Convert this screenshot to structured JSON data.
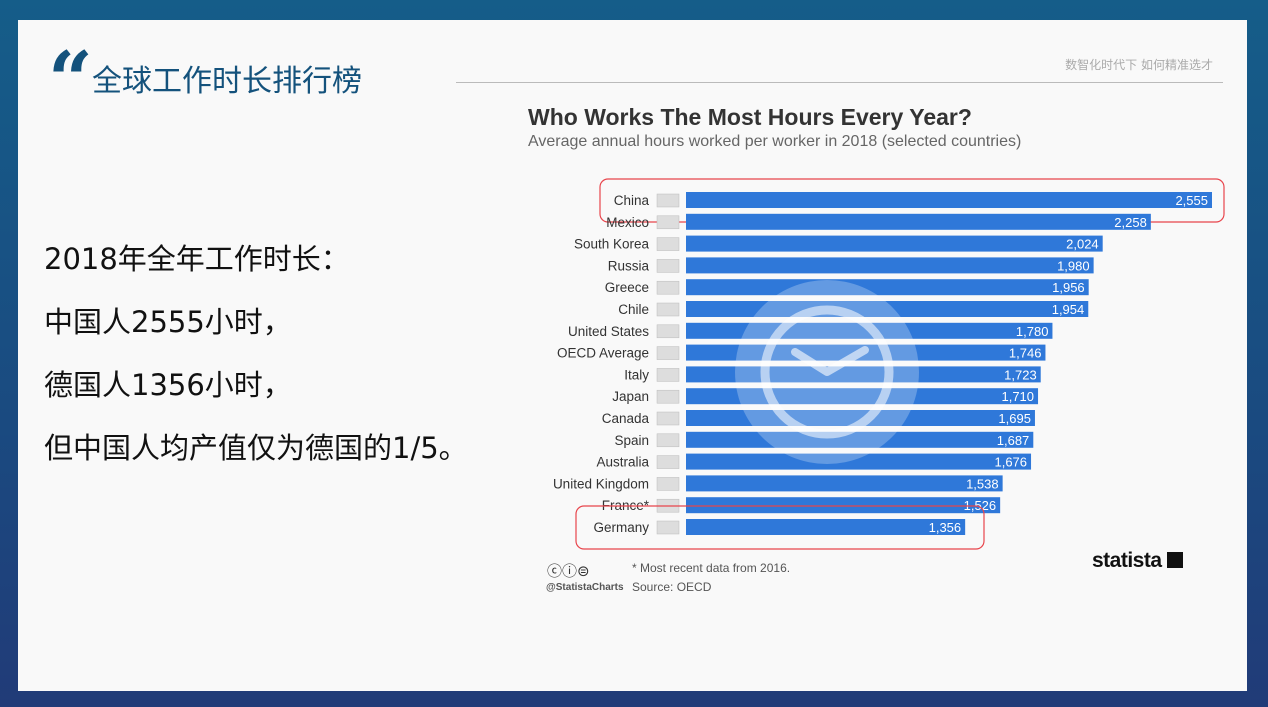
{
  "slide": {
    "title": "全球工作时长排行榜",
    "tagline": "数智化时代下 如何精准选才",
    "lines": [
      "2018年全年工作时长：",
      "中国人2555小时，",
      "德国人1356小时，",
      "但中国人均产值仅为德国的1/5。"
    ]
  },
  "chart_data": {
    "type": "bar",
    "orientation": "horizontal",
    "title": "Who Works The Most Hours Every Year?",
    "subtitle": "Average annual hours worked per worker in 2018 (selected countries)",
    "categories": [
      "China",
      "Mexico",
      "South Korea",
      "Russia",
      "Greece",
      "Chile",
      "United States",
      "OECD Average",
      "Italy",
      "Japan",
      "Canada",
      "Spain",
      "Australia",
      "United Kingdom",
      "France*",
      "Germany"
    ],
    "values": [
      2555,
      2258,
      2024,
      1980,
      1956,
      1954,
      1780,
      1746,
      1723,
      1710,
      1695,
      1687,
      1676,
      1538,
      1526,
      1356
    ],
    "value_labels": [
      "2,555",
      "2,258",
      "2,024",
      "1,980",
      "1,956",
      "1,954",
      "1,780",
      "1,746",
      "1,723",
      "1,710",
      "1,695",
      "1,687",
      "1,676",
      "1,538",
      "1,526",
      "1,356"
    ],
    "highlighted": [
      "China",
      "Germany"
    ],
    "bar_color": "#2f78d9",
    "highlight_color": "#e8454c",
    "note": "* Most recent data from 2016.",
    "source": "Source: OECD",
    "handle": "@StatistaCharts",
    "brand": "statista"
  }
}
